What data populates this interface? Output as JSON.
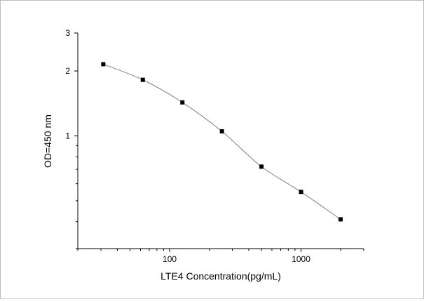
{
  "chart_data": {
    "type": "line",
    "title": "",
    "xlabel": "LTE4 Concentration(pg/mL)",
    "ylabel": "OD=450 nm",
    "xscale": "log",
    "yscale": "log",
    "xlim": [
      20,
      3000
    ],
    "ylim": [
      0.3,
      3
    ],
    "grid": false,
    "legend": "none",
    "xticks": [
      100,
      1000
    ],
    "xtick_labels": [
      "100",
      "1000"
    ],
    "yticks": [
      1,
      2,
      3
    ],
    "ytick_labels": [
      "1",
      "2",
      "3"
    ],
    "series": [
      {
        "marker": "square",
        "color": "#000000",
        "line_color": "#808080",
        "x": [
          31.25,
          62.5,
          125,
          250,
          500,
          1000,
          2000
        ],
        "y": [
          2.15,
          1.82,
          1.43,
          1.05,
          0.72,
          0.55,
          0.41
        ]
      }
    ]
  }
}
